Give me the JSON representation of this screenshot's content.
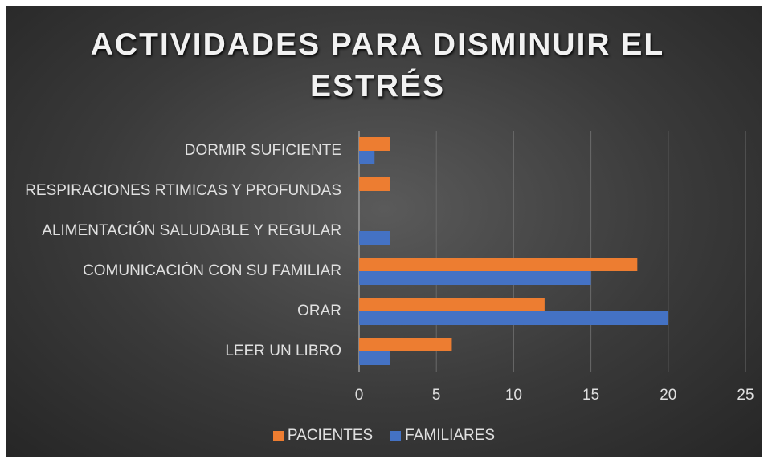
{
  "chart_data": {
    "type": "hbar",
    "title": "ACTIVIDADES PARA DISMINUIR EL ESTRÉS",
    "categories": [
      "DORMIR SUFICIENTE",
      "RESPIRACIONES RTIMICAS Y PROFUNDAS",
      "ALIMENTACIÓN SALUDABLE Y REGULAR",
      "COMUNICACIÓN CON SU FAMILIAR",
      "ORAR",
      "LEER UN LIBRO"
    ],
    "series": [
      {
        "name": "PACIENTES",
        "color": "#ed7d31",
        "values": [
          2,
          2,
          0,
          18,
          12,
          6
        ]
      },
      {
        "name": "FAMILIARES",
        "color": "#4472c4",
        "values": [
          1,
          0,
          2,
          15,
          20,
          2
        ]
      }
    ],
    "xlim": [
      0,
      25
    ],
    "xticks": [
      0,
      5,
      10,
      15,
      20,
      25
    ],
    "grid": true,
    "legend": "bottom"
  }
}
